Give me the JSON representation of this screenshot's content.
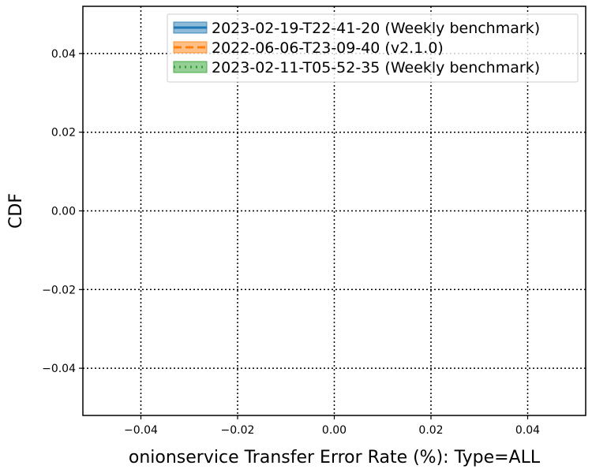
{
  "chart_data": {
    "type": "line",
    "title": "",
    "xlabel": "onionservice Transfer Error Rate (%): Type=ALL",
    "ylabel": "CDF",
    "xlim": [
      -0.052,
      0.052
    ],
    "ylim": [
      -0.052,
      0.052
    ],
    "xticks": [
      -0.04,
      -0.02,
      0.0,
      0.02,
      0.04
    ],
    "yticks": [
      -0.04,
      -0.02,
      0.0,
      0.02,
      0.04
    ],
    "xtick_labels": [
      "−0.04",
      "−0.02",
      "0.00",
      "0.02",
      "0.04"
    ],
    "ytick_labels": [
      "−0.04",
      "−0.02",
      "0.00",
      "0.02",
      "0.04"
    ],
    "grid": true,
    "legend_position": "top-right",
    "series": [
      {
        "name": "2023-02-19-T22-41-20 (Weekly benchmark)",
        "color": "#1f77b4",
        "linestyle": "solid",
        "x": [],
        "y": []
      },
      {
        "name": "2022-06-06-T23-09-40 (v2.1.0)",
        "color": "#ff7f0e",
        "linestyle": "dashed",
        "x": [],
        "y": []
      },
      {
        "name": "2023-02-11-T05-52-35 (Weekly benchmark)",
        "color": "#2ca02c",
        "linestyle": "dotted",
        "x": [],
        "y": []
      }
    ]
  }
}
